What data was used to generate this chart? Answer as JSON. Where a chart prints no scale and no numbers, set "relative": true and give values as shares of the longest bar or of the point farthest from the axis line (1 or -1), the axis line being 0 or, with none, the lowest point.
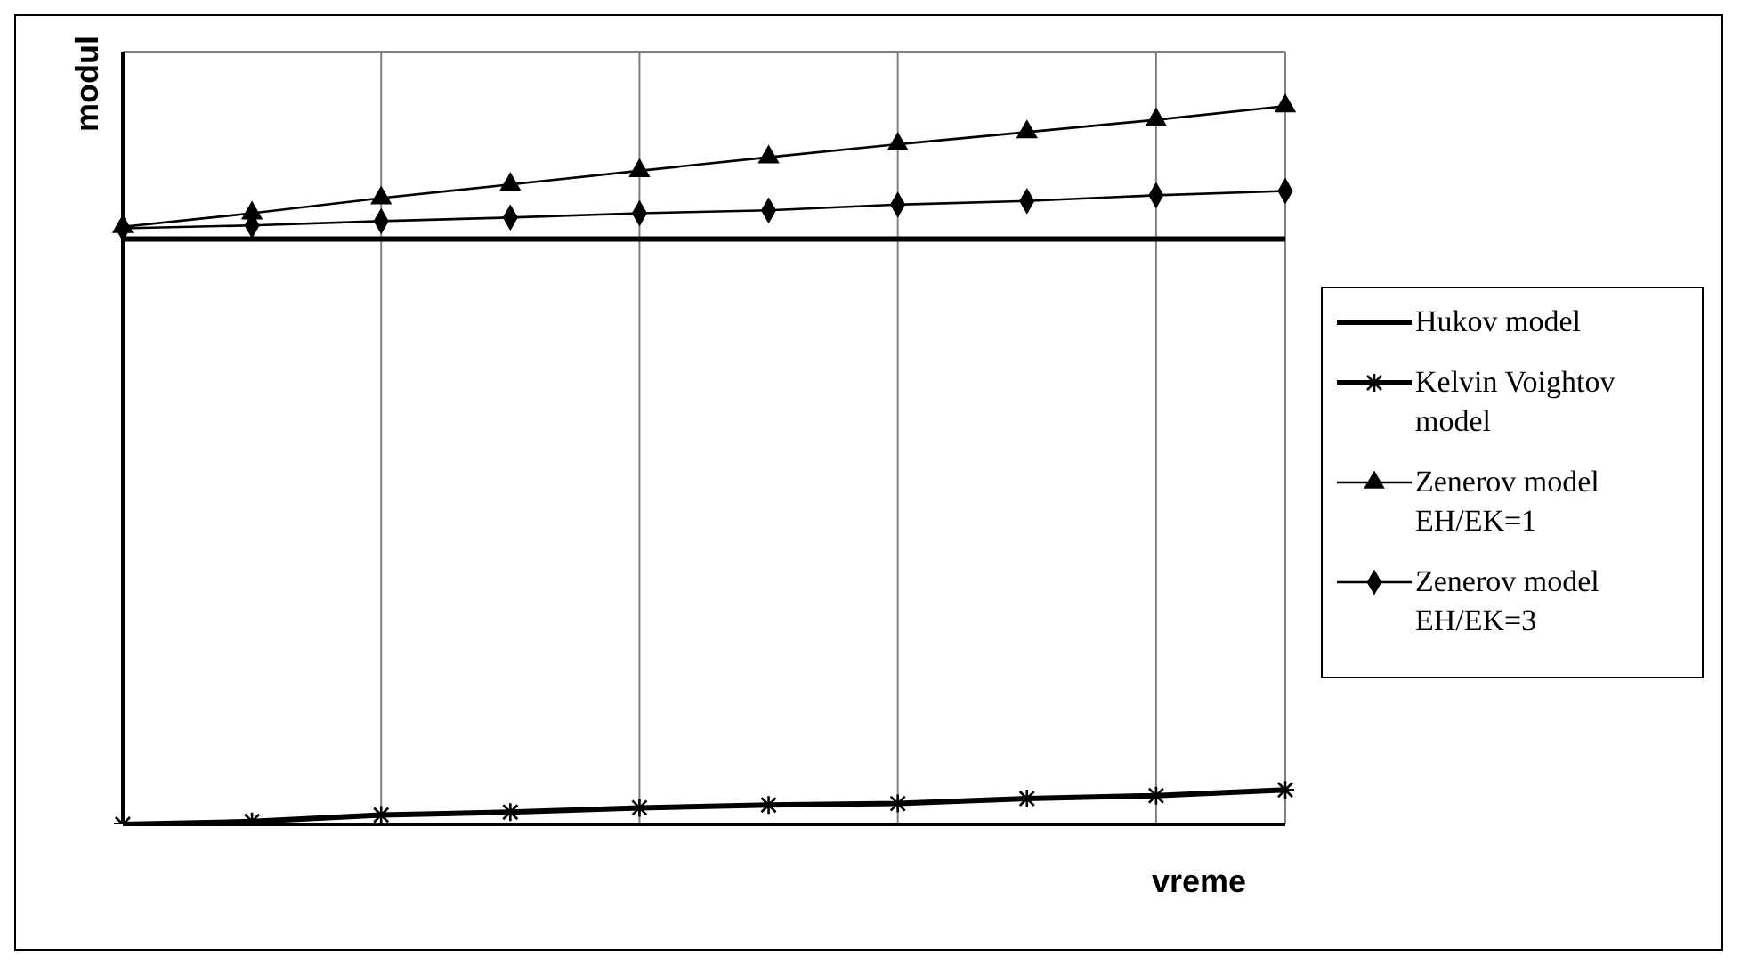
{
  "chart_data": {
    "type": "line",
    "relative": true,
    "xlabel": "vreme",
    "ylabel": "modul",
    "grid": true,
    "legend": "right",
    "categories": [
      null,
      null,
      null,
      null,
      null,
      null,
      null,
      null,
      null,
      null
    ],
    "series": [
      {
        "name": "Hukov model",
        "color": "#000000",
        "marker": "none",
        "values": [
          0.815,
          0.815,
          0.815,
          0.815,
          0.815,
          0.815,
          0.815,
          0.815,
          0.815,
          0.815
        ]
      },
      {
        "name": "Kelvin Voightov model",
        "color": "#000000",
        "marker": "cross",
        "values": [
          0,
          0.004,
          0.013,
          0.017,
          0.023,
          0.027,
          0.029,
          0.036,
          0.04,
          0.048
        ]
      },
      {
        "name": "Zenerov model EH/EK=1",
        "color": "#000000",
        "marker": "triangle",
        "values": [
          0.832,
          0.851,
          0.872,
          0.891,
          0.91,
          0.929,
          0.947,
          0.964,
          0.981,
          1
        ]
      },
      {
        "name": "Zenerov model EH/EK=3",
        "color": "#000000",
        "marker": "diamond",
        "values": [
          0.83,
          0.834,
          0.84,
          0.845,
          0.851,
          0.855,
          0.863,
          0.868,
          0.876,
          0.882
        ]
      }
    ]
  }
}
